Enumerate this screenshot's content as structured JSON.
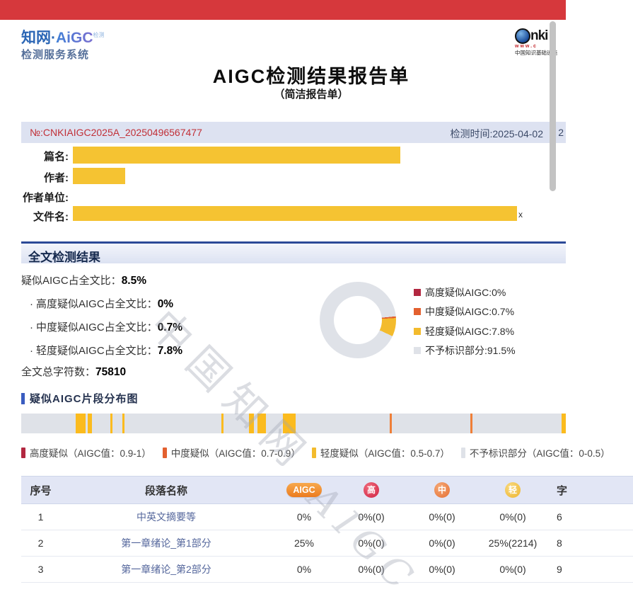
{
  "page": {
    "title": "AIGC检测结果报告单",
    "subtitle": "（简洁报告单）"
  },
  "brand": {
    "name_a": "知网",
    "dot": "·",
    "name_b": "AiGC",
    "sup": "检测",
    "line2": "检测服务系统"
  },
  "cnki": {
    "nki": "nki",
    "www": "www.c",
    "caption": "中国知识基础设施"
  },
  "report": {
    "no": "№:CNKIAIGC2025A_20250496567477",
    "time": "检测时间:2025-04-02",
    "time_tail": "2"
  },
  "fields": {
    "f0": {
      "label": "篇名:"
    },
    "f1": {
      "label": "作者:"
    },
    "f2": {
      "label": "作者单位:"
    },
    "f3": {
      "label": "文件名:",
      "tail": "x"
    }
  },
  "overall": {
    "section_title": "全文检测结果",
    "line0": {
      "label": "疑似AIGC占全文比：",
      "value": "8.5%"
    },
    "line1": {
      "bullet": "·",
      "label": "高度疑似AIGC占全文比：",
      "value": "0%"
    },
    "line2": {
      "bullet": "·",
      "label": "中度疑似AIGC占全文比：",
      "value": "0.7%"
    },
    "line3": {
      "bullet": "·",
      "label": "轻度疑似AIGC占全文比：",
      "value": "7.8%"
    },
    "total": {
      "label": "全文总字符数：",
      "value": "75810"
    }
  },
  "colors": {
    "high": "#b22740",
    "medium": "#e3602f",
    "light": "#f3bb2d",
    "none": "#dfe2e8",
    "stripe_light": "#fbbb1e",
    "stripe_medium": "#ef7f38",
    "accent_red": "#d6383c",
    "redaction_yellow": "#f5c332",
    "navy": "#2c4a97"
  },
  "chart_data": {
    "type": "pie",
    "donut": true,
    "labels": [
      "高度疑似AIGC",
      "中度疑似AIGC",
      "轻度疑似AIGC",
      "不予标识部分"
    ],
    "values": [
      0,
      0.7,
      7.8,
      91.5
    ],
    "colors": [
      "#b22740",
      "#e3602f",
      "#f3bb2d",
      "#dfe2e8"
    ],
    "start_angle_deg": 84.4,
    "legend_position": "right",
    "legend": {
      "l0": {
        "label": "高度疑似AIGC: ",
        "value": "0%"
      },
      "l1": {
        "label": "中度疑似AIGC: ",
        "value": "0.7%"
      },
      "l2": {
        "label": "轻度疑似AIGC: ",
        "value": "7.8%"
      },
      "l3": {
        "label": "不予标识部分: ",
        "value": "91.5%"
      }
    }
  },
  "distribution": {
    "title": "疑似AIGC片段分布图",
    "stripes": [
      {
        "x": 0.1,
        "w": 14,
        "level": "stripe_light"
      },
      {
        "x": 0.1221,
        "w": 6,
        "level": "stripe_light"
      },
      {
        "x": 0.1636,
        "w": 3,
        "level": "stripe_light"
      },
      {
        "x": 0.1857,
        "w": 3,
        "level": "stripe_light"
      },
      {
        "x": 0.3675,
        "w": 3,
        "level": "stripe_light"
      },
      {
        "x": 0.4182,
        "w": 7,
        "level": "stripe_light"
      },
      {
        "x": 0.4338,
        "w": 12,
        "level": "stripe_light"
      },
      {
        "x": 0.4805,
        "w": 18,
        "level": "stripe_light"
      },
      {
        "x": 0.6766,
        "w": 3,
        "level": "stripe_medium"
      },
      {
        "x": 0.8247,
        "w": 3,
        "level": "stripe_medium"
      },
      {
        "x": 0.9922,
        "w": 6,
        "level": "stripe_light"
      }
    ],
    "legend": {
      "l0": "高度疑似（AIGC值：0.9-1）",
      "l1": "中度疑似（AIGC值：0.7-0.9）",
      "l2": "轻度疑似（AIGC值：0.5-0.7）",
      "l3": "不予标识部分（AIGC值：0-0.5）"
    }
  },
  "table": {
    "headers": {
      "h0": "序号",
      "h1": "段落名称",
      "h2": "AIGC",
      "h3": "高",
      "h4": "中",
      "h5": "轻",
      "h6": "字"
    },
    "rows": [
      {
        "c0": "1",
        "c1": "中英文摘要等",
        "c2": "0%",
        "c3": "0%(0)",
        "c4": "0%(0)",
        "c5": "0%(0)",
        "c6": "6"
      },
      {
        "c0": "2",
        "c1": "第一章绪论_第1部分",
        "c2": "25%",
        "c3": "0%(0)",
        "c4": "0%(0)",
        "c5": "25%(2214)",
        "c6": "8"
      },
      {
        "c0": "3",
        "c1": "第一章绪论_第2部分",
        "c2": "0%",
        "c3": "0%(0)",
        "c4": "0%(0)",
        "c5": "0%(0)",
        "c6": "9"
      }
    ]
  },
  "watermarks": {
    "w1": "中国知网",
    "w2": "AIGC"
  }
}
